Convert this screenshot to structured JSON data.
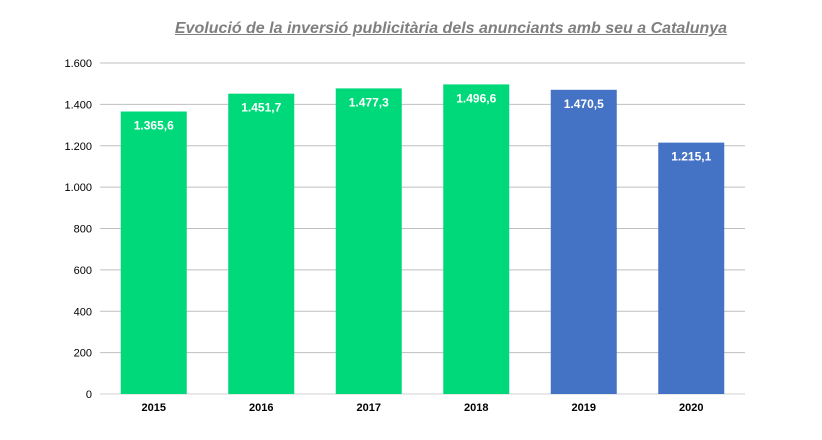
{
  "chart_data": {
    "type": "bar",
    "title": "Evolució de la inversió publicitària dels anunciants amb seu a Catalunya",
    "categories": [
      "2015",
      "2016",
      "2017",
      "2018",
      "2019",
      "2020"
    ],
    "values": [
      1365.6,
      1451.7,
      1477.3,
      1496.6,
      1470.5,
      1215.1
    ],
    "value_labels": [
      "1.365,6",
      "1.451,7",
      "1.477,3",
      "1.496,6",
      "1.470,5",
      "1.215,1"
    ],
    "bar_colors": [
      "#00d97a",
      "#00d97a",
      "#00d97a",
      "#00d97a",
      "#4472c4",
      "#4472c4"
    ],
    "y_ticks": [
      0,
      200,
      400,
      600,
      800,
      1000,
      1200,
      1400,
      1600
    ],
    "y_tick_labels": [
      "0",
      "200",
      "400",
      "600",
      "800",
      "1.000",
      "1.200",
      "1.400",
      "1.600"
    ],
    "ylim": [
      0,
      1600
    ],
    "grid": true,
    "legend": "none"
  }
}
